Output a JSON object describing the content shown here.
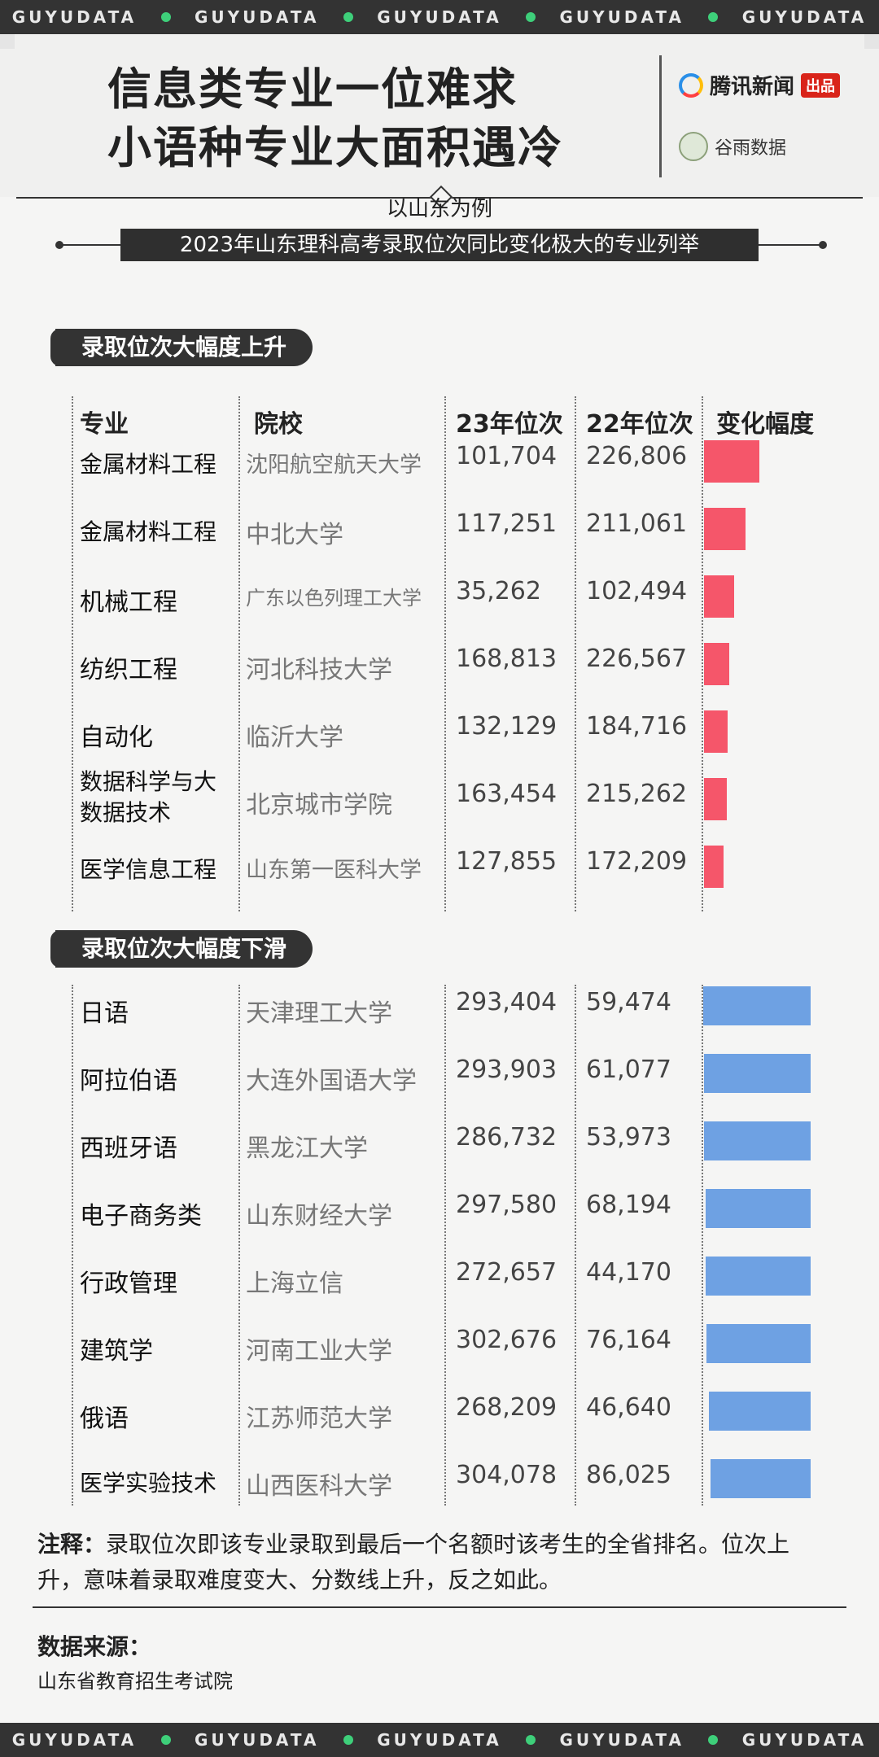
{
  "brand_band": "GUYUDATA",
  "title_lines": [
    "信息类专业一位难求",
    "小语种专业大面积遇冷"
  ],
  "logos": {
    "tencent": "腾讯新闻",
    "tencent_badge": "出品",
    "guyu": "谷雨数据"
  },
  "subtitle": "以山东为例",
  "chart_title": "2023年山东理科高考录取位次同比变化极大的专业列举",
  "columns": [
    "专业",
    "院校",
    "23年位次",
    "22年位次",
    "变化幅度"
  ],
  "colors": {
    "rise": "#f5566a",
    "fall": "#6ea1e3",
    "dark": "#333333",
    "accent_dot": "#3ecf7a"
  },
  "chart_data": {
    "type": "table",
    "sections": [
      {
        "label": "录取位次大幅度上升",
        "rows": [
          {
            "major": "金属材料工程",
            "school": "沈阳航空航天大学",
            "rank23": "101,704",
            "rank22": "226,806"
          },
          {
            "major": "金属材料工程",
            "school": "中北大学",
            "rank23": "117,251",
            "rank22": "211,061"
          },
          {
            "major": "机械工程",
            "school": "广东以色列理工大学",
            "rank23": "35,262",
            "rank22": "102,494"
          },
          {
            "major": "纺织工程",
            "school": "河北科技大学",
            "rank23": "168,813",
            "rank22": "226,567"
          },
          {
            "major": "自动化",
            "school": "临沂大学",
            "rank23": "132,129",
            "rank22": "184,716"
          },
          {
            "major": "数据科学与大数据技术",
            "school": "北京城市学院",
            "rank23": "163,454",
            "rank22": "215,262"
          },
          {
            "major": "医学信息工程",
            "school": "山东第一医科大学",
            "rank23": "127,855",
            "rank22": "172,209"
          }
        ]
      },
      {
        "label": "录取位次大幅度下滑",
        "rows": [
          {
            "major": "日语",
            "school": "天津理工大学",
            "rank23": "293,404",
            "rank22": "59,474"
          },
          {
            "major": "阿拉伯语",
            "school": "大连外国语大学",
            "rank23": "293,903",
            "rank22": "61,077"
          },
          {
            "major": "西班牙语",
            "school": "黑龙江大学",
            "rank23": "286,732",
            "rank22": "53,973"
          },
          {
            "major": "电子商务类",
            "school": "山东财经大学",
            "rank23": "297,580",
            "rank22": "68,194"
          },
          {
            "major": "行政管理",
            "school": "上海立信",
            "rank23": "272,657",
            "rank22": "44,170"
          },
          {
            "major": "建筑学",
            "school": "河南工业大学",
            "rank23": "302,676",
            "rank22": "76,164"
          },
          {
            "major": "俄语",
            "school": "江苏师范大学",
            "rank23": "268,209",
            "rank22": "46,640"
          },
          {
            "major": "医学实验技术",
            "school": "山西医科大学",
            "rank23": "304,078",
            "rank22": "86,025"
          }
        ]
      }
    ]
  },
  "note_label": "注释：",
  "note_text": "录取位次即该专业录取到最后一个名额时该考生的全省排名。位次上升，意味着录取难度变大、分数线上升，反之如此。",
  "source_label": "数据来源：",
  "source_text": "山东省教育招生考试院"
}
